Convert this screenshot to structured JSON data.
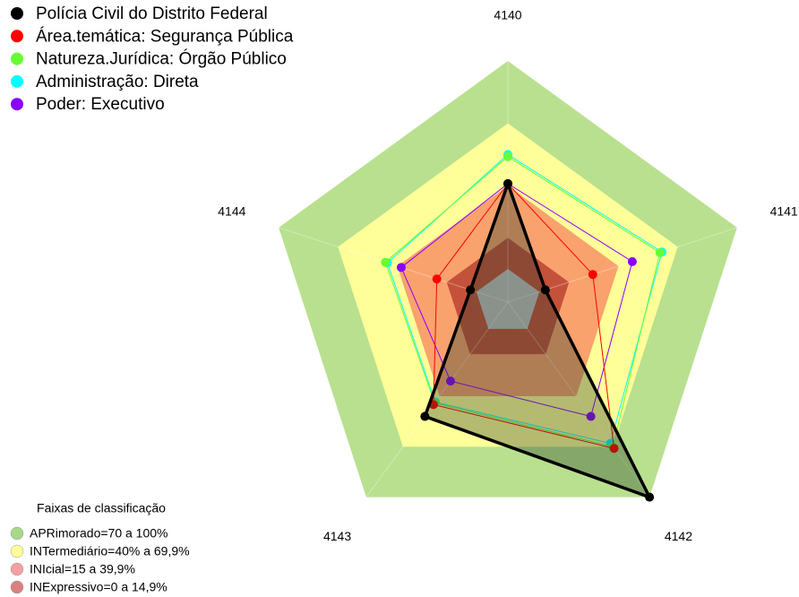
{
  "chart_data": {
    "type": "radar",
    "categories": [
      "4140",
      "4141",
      "4142",
      "4143",
      "4144"
    ],
    "rlim": [
      0,
      100
    ],
    "series": [
      {
        "name": "Polícia Civil do Distrito Federal",
        "color": "#000000",
        "values": [
          41,
          3,
          100,
          52,
          3
        ]
      },
      {
        "name": "Área.temática: Segurança Pública",
        "color": "#ff0000",
        "values": [
          41,
          27,
          71,
          45,
          20
        ]
      },
      {
        "name": "Natureza.Jurídica: Órgão Público",
        "color": "#66ff33",
        "values": [
          54,
          61,
          70,
          44,
          46
        ]
      },
      {
        "name": "Administração: Direta",
        "color": "#00ffff",
        "values": [
          55,
          62,
          68,
          43.5,
          45
        ]
      },
      {
        "name": "Poder: Executivo",
        "color": "#8800ff",
        "values": [
          41,
          47,
          52,
          31,
          38
        ]
      }
    ],
    "bands_title": "Faixas de classificação",
    "bands": [
      {
        "label": "APRimorado=70 a 100%",
        "from": 70,
        "to": 100,
        "color": "#b8e08e",
        "legend_color": "#a8d888"
      },
      {
        "label": "INTermediário=40% a 69,9%",
        "from": 40,
        "to": 70,
        "color": "#ffff99",
        "legend_color": "#ffff99"
      },
      {
        "label": "INIcial=15 a 39,9%",
        "from": 15,
        "to": 40,
        "color": "#f9a26e",
        "legend_color": "#f4a0a0"
      },
      {
        "label": "INExpressivo=0 a 14,9%",
        "from": 0,
        "to": 15,
        "color": "#c4513a",
        "legend_color": "#d98080"
      }
    ]
  }
}
